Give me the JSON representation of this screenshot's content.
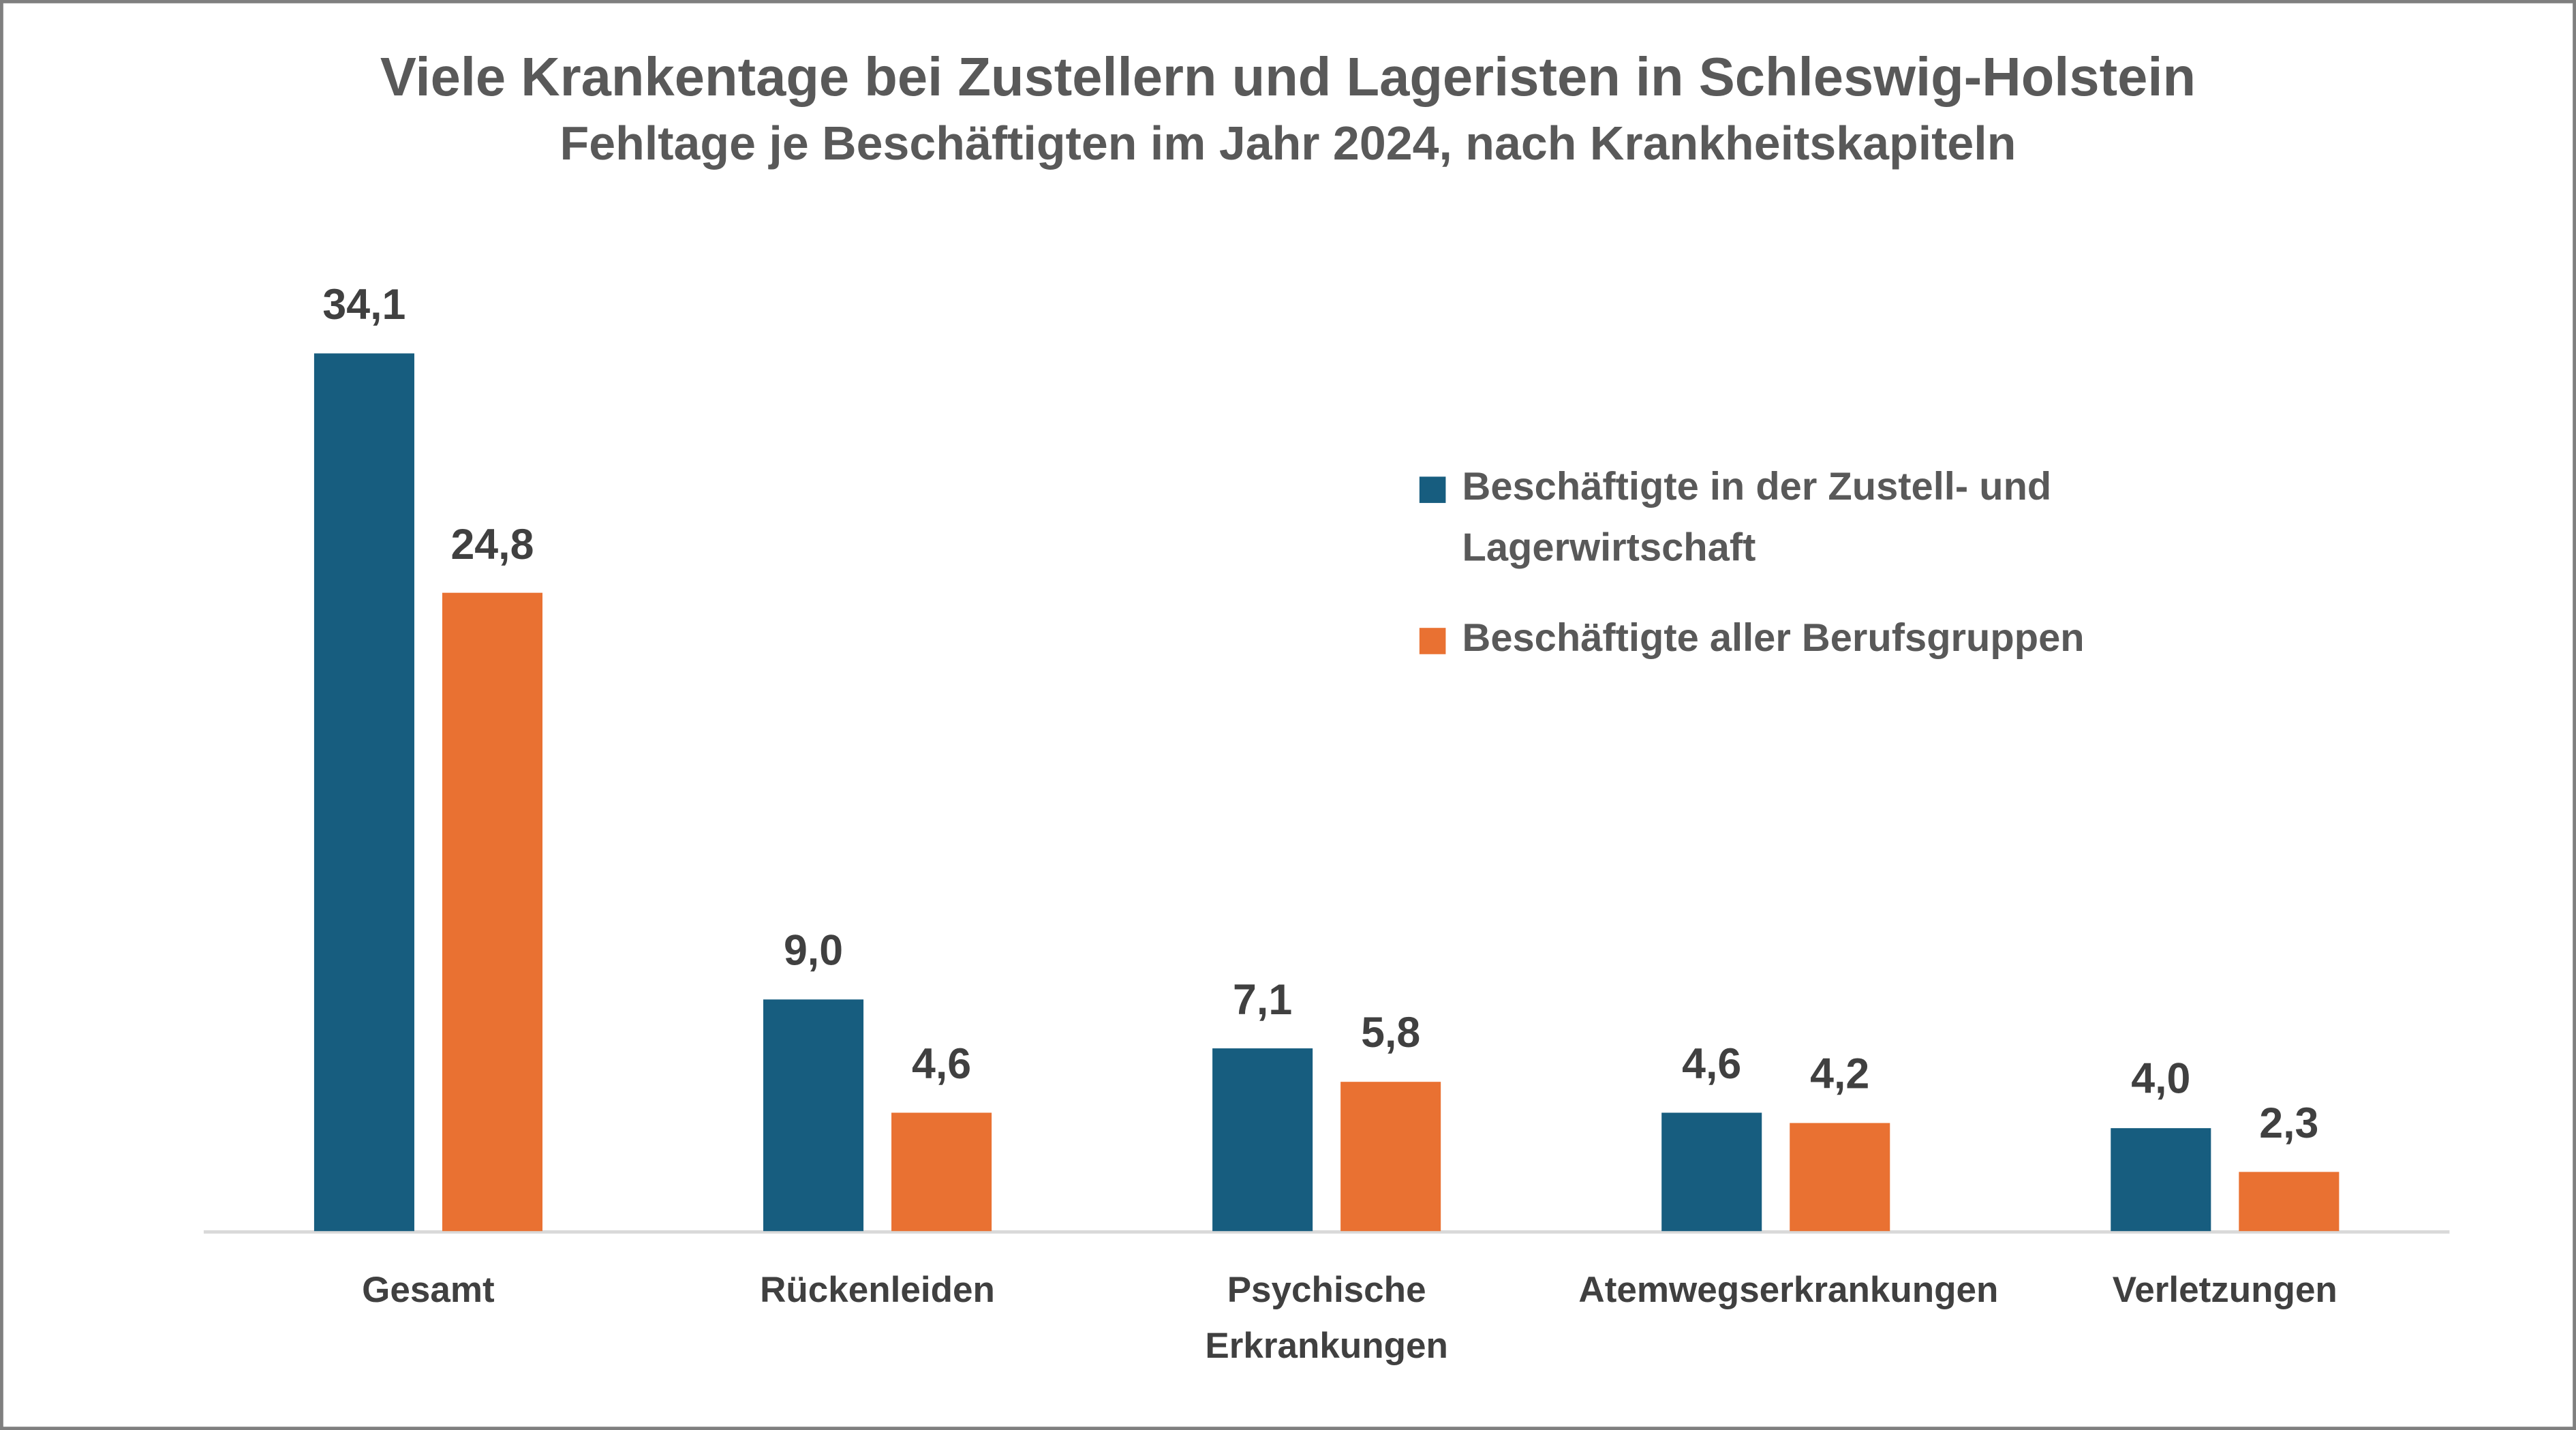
{
  "chart_data": {
    "type": "bar",
    "title": "Viele Krankentage bei Zustellern und Lageristen in Schleswig-Holstein",
    "subtitle": "Fehltage je Beschäftigten im Jahr 2024, nach Krankheitskapiteln",
    "categories": [
      "Gesamt",
      "Rückenleiden",
      "Psychische Erkrankungen",
      "Atemwegserkrankungen",
      "Verletzungen"
    ],
    "series": [
      {
        "name": "Beschäftigte in der Zustell- und Lagerwirtschaft",
        "color": "#175d7f",
        "values": [
          34.1,
          9.0,
          7.1,
          4.6,
          4.0
        ],
        "value_labels": [
          "34,1",
          "9,0",
          "7,1",
          "4,6",
          "4,0"
        ]
      },
      {
        "name": "Beschäftigte aller Berufsgruppen",
        "color": "#e97132",
        "values": [
          24.8,
          4.6,
          5.8,
          4.2,
          2.3
        ],
        "value_labels": [
          "24,8",
          "4,6",
          "5,8",
          "4,2",
          "2,3"
        ]
      }
    ],
    "legend": "right"
  }
}
